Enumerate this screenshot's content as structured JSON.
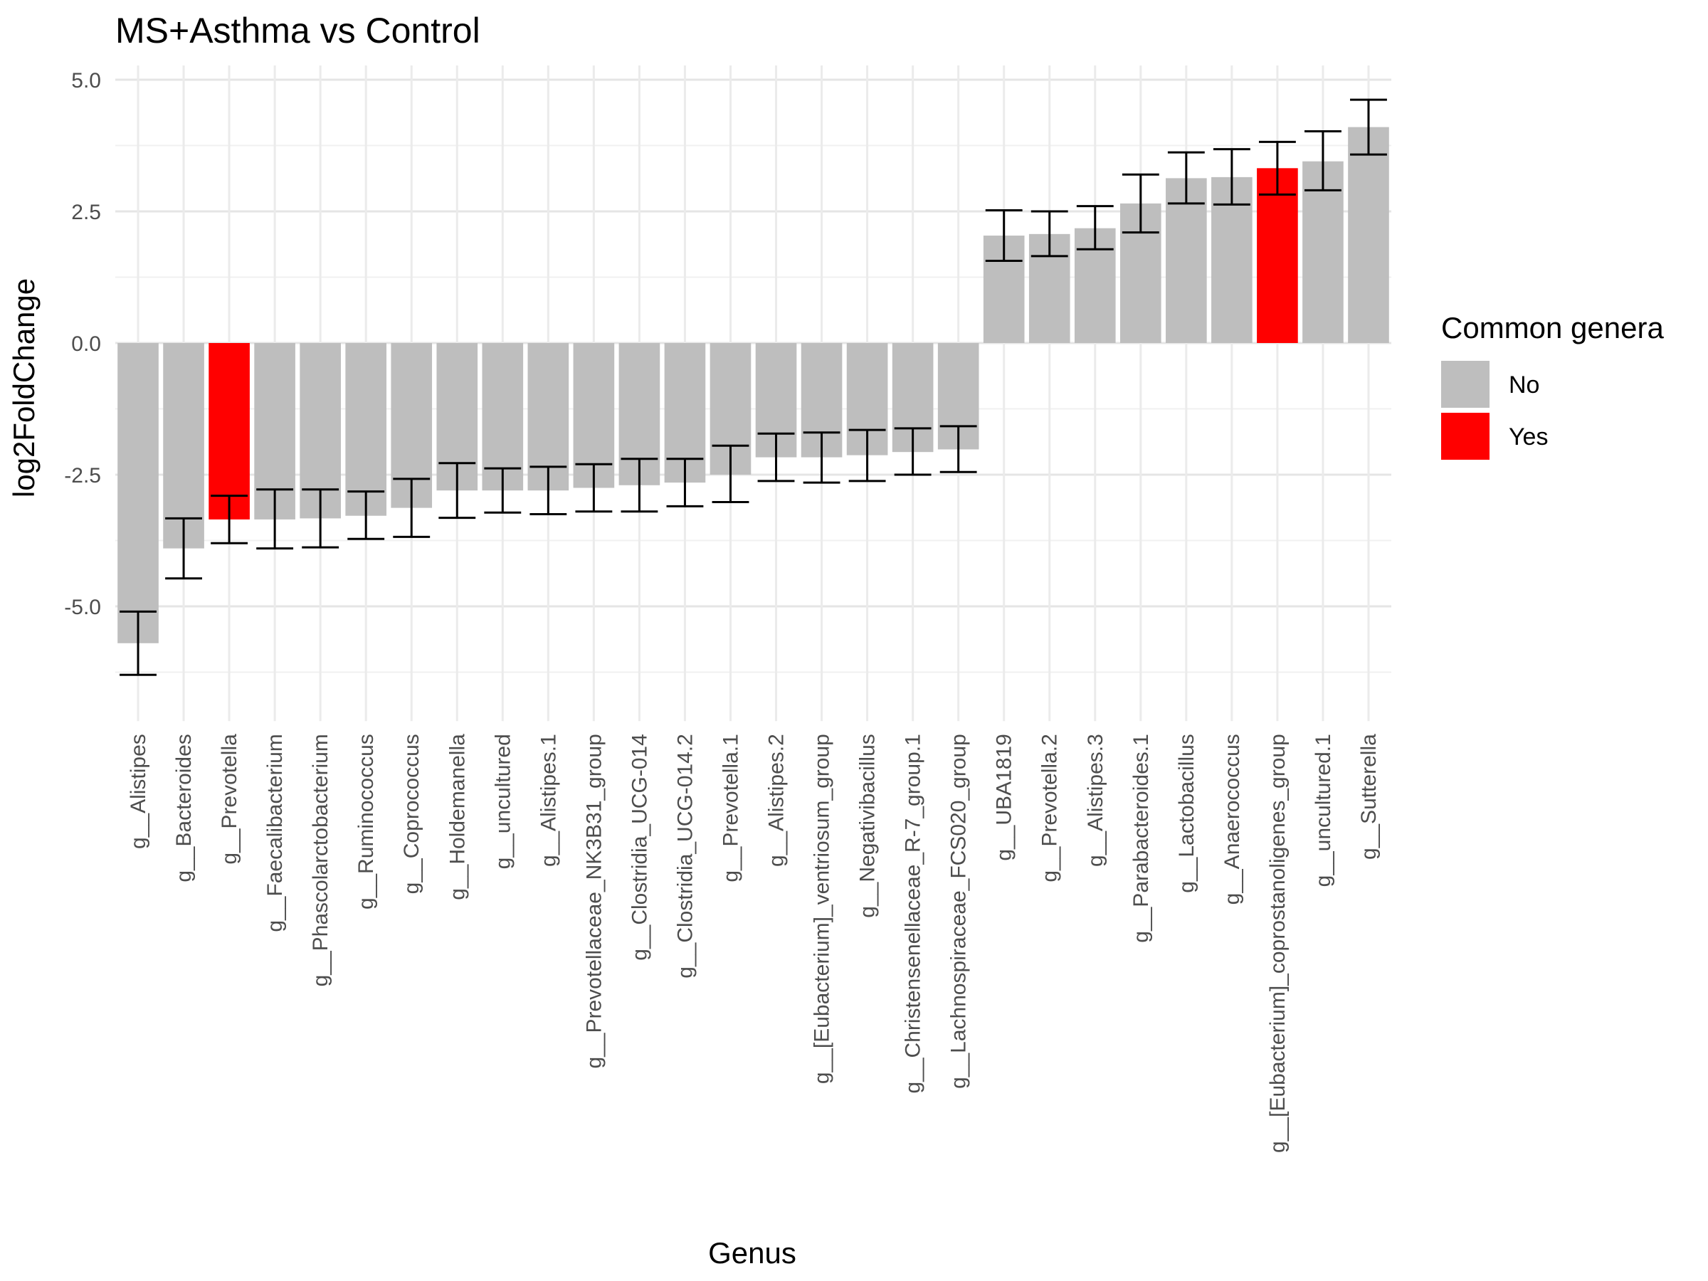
{
  "chart_data": {
    "type": "bar",
    "title": "MS+Asthma vs Control",
    "xlabel": "Genus",
    "ylabel": "log2FoldChange",
    "ylim": [
      -6.8,
      5.0
    ],
    "yticks": [
      -5.0,
      -2.5,
      0.0,
      2.5,
      5.0
    ],
    "ytick_labels": [
      "-5.0",
      "-2.5",
      "0.0",
      "2.5",
      "5.0"
    ],
    "grid": true,
    "legend": {
      "title": "Common genera",
      "position": "right",
      "entries": [
        {
          "label": "No",
          "color": "#bebebe"
        },
        {
          "label": "Yes",
          "color": "#ff0000"
        }
      ]
    },
    "categories": [
      "g__Alistipes",
      "g__Bacteroides",
      "g__Prevotella",
      "g__Faecalibacterium",
      "g__Phascolarctobacterium",
      "g__Ruminococcus",
      "g__Coprococcus",
      "g__Holdemanella",
      "g__uncultured",
      "g__Alistipes.1",
      "g__Prevotellaceae_NK3B31_group",
      "g__Clostridia_UCG-014",
      "g__Clostridia_UCG-014.2",
      "g__Prevotella.1",
      "g__Alistipes.2",
      "g__[Eubacterium]_ventriosum_group",
      "g__Negativibacillus",
      "g__Christensenellaceae_R-7_group.1",
      "g__Lachnospiraceae_FCS020_group",
      "g__UBA1819",
      "g__Prevotella.2",
      "g__Alistipes.3",
      "g__Parabacteroides.1",
      "g__Lactobacillus",
      "g__Anaerococcus",
      "g__[Eubacterium]_coprostanoligenes_group",
      "g__uncultured.1",
      "g__Sutterella"
    ],
    "values": [
      -5.7,
      -3.9,
      -3.35,
      -3.35,
      -3.33,
      -3.28,
      -3.13,
      -2.8,
      -2.8,
      -2.8,
      -2.75,
      -2.7,
      -2.65,
      -2.5,
      -2.17,
      -2.17,
      -2.13,
      -2.07,
      -2.02,
      2.04,
      2.07,
      2.18,
      2.65,
      3.13,
      3.15,
      3.32,
      3.45,
      4.1
    ],
    "error_low": [
      -6.3,
      -4.47,
      -3.8,
      -3.9,
      -3.88,
      -3.72,
      -3.68,
      -3.32,
      -3.22,
      -3.25,
      -3.2,
      -3.2,
      -3.1,
      -3.02,
      -2.62,
      -2.65,
      -2.62,
      -2.5,
      -2.45,
      1.56,
      1.65,
      1.78,
      2.1,
      2.65,
      2.63,
      2.82,
      2.9,
      3.58
    ],
    "error_high": [
      -5.1,
      -3.33,
      -2.9,
      -2.78,
      -2.78,
      -2.82,
      -2.58,
      -2.28,
      -2.38,
      -2.35,
      -2.3,
      -2.2,
      -2.2,
      -1.95,
      -1.72,
      -1.7,
      -1.65,
      -1.62,
      -1.58,
      2.52,
      2.5,
      2.6,
      3.2,
      3.62,
      3.68,
      3.82,
      4.02,
      4.62
    ],
    "common": [
      "No",
      "No",
      "Yes",
      "No",
      "No",
      "No",
      "No",
      "No",
      "No",
      "No",
      "No",
      "No",
      "No",
      "No",
      "No",
      "No",
      "No",
      "No",
      "No",
      "No",
      "No",
      "No",
      "No",
      "No",
      "No",
      "Yes",
      "No",
      "No"
    ]
  }
}
